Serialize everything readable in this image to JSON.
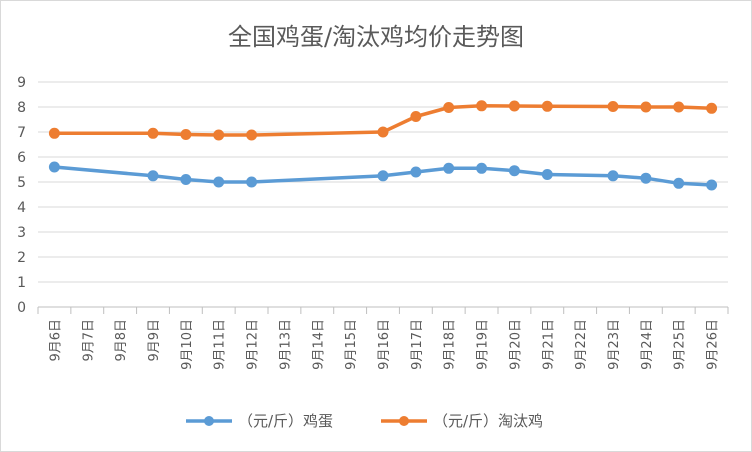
{
  "chart_data": {
    "type": "line",
    "title": "全国鸡蛋/淘汰鸡均价走势图",
    "xlabel": "",
    "ylabel": "",
    "ylim": [
      0,
      9
    ],
    "yticks": [
      "0",
      "1",
      "2",
      "3",
      "4",
      "5",
      "6",
      "7",
      "8",
      "9"
    ],
    "categories": [
      "9月6日",
      "9月7日",
      "9月8日",
      "9月9日",
      "9月10日",
      "9月11日",
      "9月12日",
      "9月13日",
      "9月14日",
      "9月15日",
      "9月16日",
      "9月17日",
      "9月18日",
      "9月19日",
      "9月20日",
      "9月21日",
      "9月22日",
      "9月23日",
      "9月24日",
      "9月25日",
      "9月26日"
    ],
    "series": [
      {
        "name": "（元/斤）鸡蛋",
        "color": "#5b9bd5",
        "values": [
          5.6,
          null,
          null,
          5.25,
          5.1,
          5.0,
          5.0,
          null,
          null,
          null,
          5.25,
          5.4,
          5.55,
          5.55,
          5.45,
          5.3,
          null,
          5.25,
          5.15,
          4.95,
          4.88
        ]
      },
      {
        "name": "（元/斤）淘汰鸡",
        "color": "#ed7d31",
        "values": [
          6.95,
          null,
          null,
          6.95,
          6.9,
          6.88,
          6.88,
          null,
          null,
          null,
          7.0,
          7.62,
          7.98,
          8.05,
          8.04,
          8.03,
          null,
          8.02,
          8.0,
          8.0,
          7.95
        ]
      }
    ],
    "grid": true,
    "legend_position": "bottom"
  }
}
